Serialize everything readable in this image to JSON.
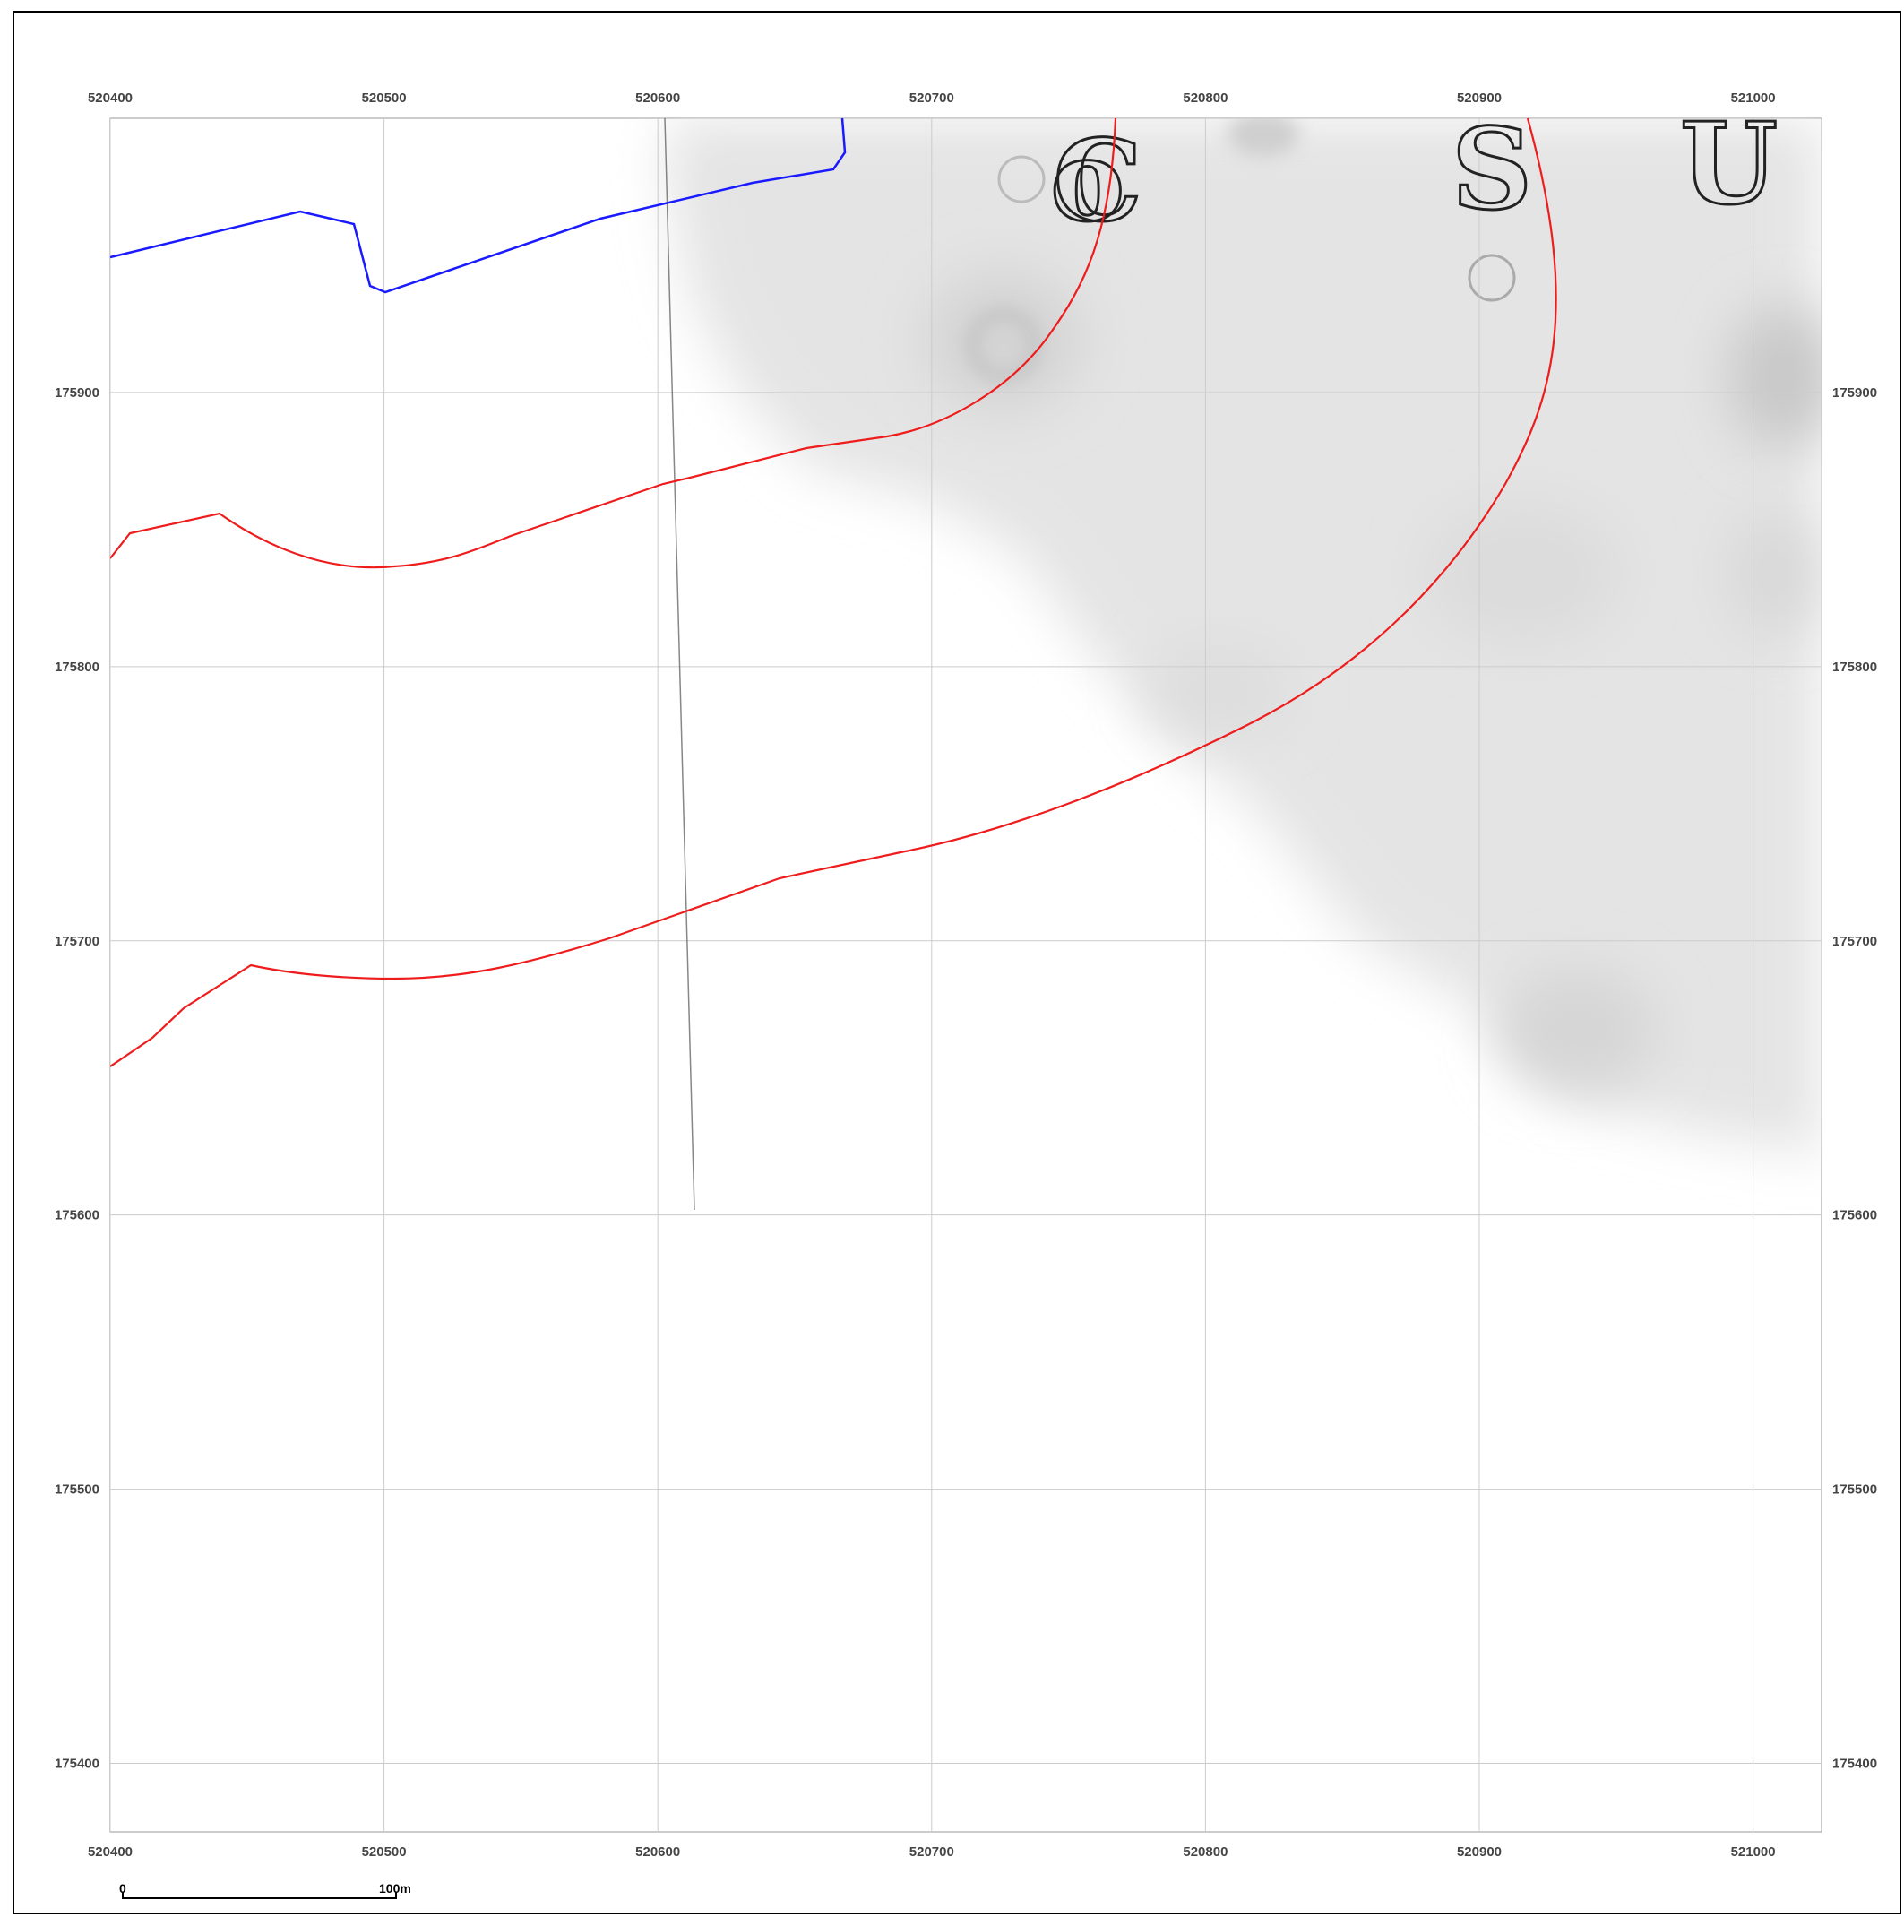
{
  "map": {
    "x_ticks": [
      "520400",
      "520500",
      "520600",
      "520700",
      "520800",
      "520900",
      "521000"
    ],
    "y_ticks": [
      "175900",
      "175800",
      "175700",
      "175600",
      "175500",
      "175400"
    ],
    "extent": {
      "x_min": 520400,
      "x_max": 521025,
      "y_min": 175375,
      "y_max": 176000
    },
    "grid_interval_m": 100,
    "historic_lettering": [
      "Co",
      "S",
      "U"
    ],
    "colors": {
      "boundary": "#1a1aff",
      "contours": "#ee1c1c",
      "grid": "#cccccc",
      "old_path": "#555555"
    }
  },
  "scale_bar": {
    "start_label": "0",
    "end_label": "100m",
    "length_m": 100
  }
}
